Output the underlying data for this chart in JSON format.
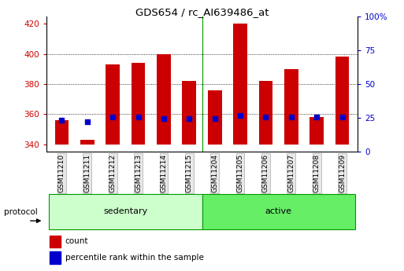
{
  "title": "GDS654 / rc_AI639486_at",
  "categories": [
    "GSM11210",
    "GSM11211",
    "GSM11212",
    "GSM11213",
    "GSM11214",
    "GSM11215",
    "GSM11204",
    "GSM11205",
    "GSM11206",
    "GSM11207",
    "GSM11208",
    "GSM11209"
  ],
  "bar_values": [
    356,
    343,
    393,
    394,
    400,
    382,
    376,
    420,
    382,
    390,
    358,
    398
  ],
  "bar_bottom": 340,
  "percentile_values": [
    356,
    355,
    358,
    358,
    357,
    357,
    357,
    359,
    358,
    358,
    358,
    358
  ],
  "bar_color": "#cc0000",
  "percentile_color": "#0000cc",
  "ylim_left": [
    335,
    425
  ],
  "ylim_right": [
    0,
    100
  ],
  "yticks_left": [
    340,
    360,
    380,
    400,
    420
  ],
  "ytick_labels_left": [
    "340",
    "360",
    "380",
    "400",
    "420"
  ],
  "yticks_right": [
    0,
    25,
    50,
    75,
    100
  ],
  "ytick_labels_right": [
    "0",
    "25",
    "50",
    "75",
    "100%"
  ],
  "sedentary_label": "sedentary",
  "active_label": "active",
  "protocol_label": "protocol",
  "legend_count": "count",
  "legend_percentile": "percentile rank within the sample",
  "bg_color": "#ffffff",
  "bar_width": 0.55,
  "tick_color_left": "#cc0000",
  "tick_color_right": "#0000cc",
  "group_bg_sedentary": "#ccffcc",
  "group_bg_active": "#66ee66",
  "n_sedentary": 6,
  "n_active": 6,
  "sep_line_color": "#009900",
  "grid_yticks": [
    360,
    380,
    400
  ]
}
